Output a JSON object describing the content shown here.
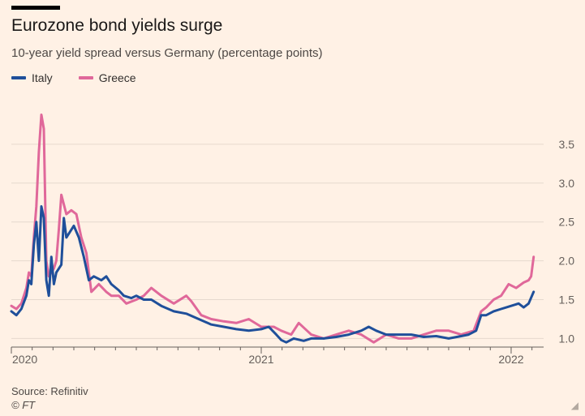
{
  "header": {
    "title": "Eurozone bond yields surge",
    "subtitle": "10-year yield spread versus Germany (percentage points)"
  },
  "footer": {
    "source": "Source: Refinitiv",
    "credit": "© FT"
  },
  "colors": {
    "background": "#fff1e5",
    "italy": "#1f4f9a",
    "greece": "#e0689a",
    "grid": "#e6d9ce",
    "axis": "#66605c"
  },
  "chart_data": {
    "type": "line",
    "title": "Eurozone bond yields surge",
    "subtitle": "10-year yield spread versus Germany (percentage points)",
    "xlabel": "",
    "ylabel": "",
    "xlim": [
      2020.0,
      2022.13
    ],
    "ylim": [
      0.9,
      4.0
    ],
    "grid": true,
    "y_axis_position": "right",
    "legend_position": "top-left",
    "x_ticks": [
      {
        "value": 2020.0,
        "label": "2020"
      },
      {
        "value": 2021.0,
        "label": "2021"
      },
      {
        "value": 2022.0,
        "label": "2022"
      }
    ],
    "y_ticks": [
      {
        "value": 1.0,
        "label": "1.0"
      },
      {
        "value": 1.5,
        "label": "1.5"
      },
      {
        "value": 2.0,
        "label": "2.0"
      },
      {
        "value": 2.5,
        "label": "2.5"
      },
      {
        "value": 3.0,
        "label": "3.0"
      },
      {
        "value": 3.5,
        "label": "3.5"
      }
    ],
    "series": [
      {
        "name": "Italy",
        "color": "#1f4f9a",
        "points": [
          [
            2020.0,
            1.35
          ],
          [
            2020.02,
            1.3
          ],
          [
            2020.04,
            1.38
          ],
          [
            2020.06,
            1.55
          ],
          [
            2020.07,
            1.75
          ],
          [
            2020.08,
            1.7
          ],
          [
            2020.09,
            2.2
          ],
          [
            2020.1,
            2.5
          ],
          [
            2020.11,
            2.0
          ],
          [
            2020.12,
            2.7
          ],
          [
            2020.13,
            2.55
          ],
          [
            2020.14,
            1.75
          ],
          [
            2020.15,
            1.55
          ],
          [
            2020.16,
            2.05
          ],
          [
            2020.17,
            1.7
          ],
          [
            2020.18,
            1.85
          ],
          [
            2020.2,
            1.95
          ],
          [
            2020.21,
            2.55
          ],
          [
            2020.22,
            2.3
          ],
          [
            2020.24,
            2.4
          ],
          [
            2020.25,
            2.45
          ],
          [
            2020.27,
            2.3
          ],
          [
            2020.29,
            2.05
          ],
          [
            2020.31,
            1.75
          ],
          [
            2020.33,
            1.8
          ],
          [
            2020.36,
            1.75
          ],
          [
            2020.38,
            1.8
          ],
          [
            2020.4,
            1.7
          ],
          [
            2020.43,
            1.62
          ],
          [
            2020.45,
            1.55
          ],
          [
            2020.48,
            1.52
          ],
          [
            2020.5,
            1.55
          ],
          [
            2020.53,
            1.5
          ],
          [
            2020.56,
            1.5
          ],
          [
            2020.6,
            1.42
          ],
          [
            2020.65,
            1.35
          ],
          [
            2020.7,
            1.32
          ],
          [
            2020.75,
            1.25
          ],
          [
            2020.8,
            1.18
          ],
          [
            2020.85,
            1.15
          ],
          [
            2020.9,
            1.12
          ],
          [
            2020.95,
            1.1
          ],
          [
            2021.0,
            1.12
          ],
          [
            2021.03,
            1.15
          ],
          [
            2021.06,
            1.05
          ],
          [
            2021.08,
            0.98
          ],
          [
            2021.1,
            0.95
          ],
          [
            2021.13,
            1.0
          ],
          [
            2021.17,
            0.97
          ],
          [
            2021.2,
            1.0
          ],
          [
            2021.25,
            1.0
          ],
          [
            2021.3,
            1.02
          ],
          [
            2021.35,
            1.05
          ],
          [
            2021.4,
            1.1
          ],
          [
            2021.43,
            1.15
          ],
          [
            2021.46,
            1.1
          ],
          [
            2021.5,
            1.05
          ],
          [
            2021.55,
            1.05
          ],
          [
            2021.6,
            1.05
          ],
          [
            2021.65,
            1.02
          ],
          [
            2021.7,
            1.03
          ],
          [
            2021.75,
            1.0
          ],
          [
            2021.8,
            1.03
          ],
          [
            2021.83,
            1.05
          ],
          [
            2021.86,
            1.1
          ],
          [
            2021.88,
            1.3
          ],
          [
            2021.9,
            1.3
          ],
          [
            2021.93,
            1.35
          ],
          [
            2021.96,
            1.38
          ],
          [
            2022.0,
            1.42
          ],
          [
            2022.03,
            1.45
          ],
          [
            2022.05,
            1.4
          ],
          [
            2022.07,
            1.45
          ],
          [
            2022.09,
            1.6
          ]
        ]
      },
      {
        "name": "Greece",
        "color": "#e0689a",
        "points": [
          [
            2020.0,
            1.42
          ],
          [
            2020.02,
            1.38
          ],
          [
            2020.04,
            1.45
          ],
          [
            2020.06,
            1.65
          ],
          [
            2020.07,
            1.85
          ],
          [
            2020.08,
            1.8
          ],
          [
            2020.09,
            2.3
          ],
          [
            2020.1,
            2.7
          ],
          [
            2020.11,
            3.4
          ],
          [
            2020.12,
            3.88
          ],
          [
            2020.13,
            3.7
          ],
          [
            2020.14,
            2.0
          ],
          [
            2020.15,
            1.8
          ],
          [
            2020.17,
            1.9
          ],
          [
            2020.18,
            2.0
          ],
          [
            2020.19,
            2.4
          ],
          [
            2020.2,
            2.85
          ],
          [
            2020.22,
            2.6
          ],
          [
            2020.24,
            2.65
          ],
          [
            2020.26,
            2.6
          ],
          [
            2020.28,
            2.3
          ],
          [
            2020.3,
            2.1
          ],
          [
            2020.32,
            1.6
          ],
          [
            2020.35,
            1.7
          ],
          [
            2020.38,
            1.6
          ],
          [
            2020.4,
            1.55
          ],
          [
            2020.43,
            1.55
          ],
          [
            2020.46,
            1.45
          ],
          [
            2020.5,
            1.5
          ],
          [
            2020.53,
            1.55
          ],
          [
            2020.56,
            1.65
          ],
          [
            2020.6,
            1.55
          ],
          [
            2020.65,
            1.45
          ],
          [
            2020.7,
            1.55
          ],
          [
            2020.72,
            1.48
          ],
          [
            2020.76,
            1.3
          ],
          [
            2020.8,
            1.25
          ],
          [
            2020.85,
            1.22
          ],
          [
            2020.9,
            1.2
          ],
          [
            2020.95,
            1.25
          ],
          [
            2021.0,
            1.15
          ],
          [
            2021.05,
            1.15
          ],
          [
            2021.08,
            1.1
          ],
          [
            2021.12,
            1.05
          ],
          [
            2021.15,
            1.2
          ],
          [
            2021.2,
            1.05
          ],
          [
            2021.25,
            1.0
          ],
          [
            2021.3,
            1.05
          ],
          [
            2021.35,
            1.1
          ],
          [
            2021.4,
            1.05
          ],
          [
            2021.45,
            0.95
          ],
          [
            2021.5,
            1.05
          ],
          [
            2021.55,
            1.0
          ],
          [
            2021.6,
            1.0
          ],
          [
            2021.65,
            1.05
          ],
          [
            2021.7,
            1.1
          ],
          [
            2021.75,
            1.1
          ],
          [
            2021.8,
            1.05
          ],
          [
            2021.85,
            1.1
          ],
          [
            2021.88,
            1.35
          ],
          [
            2021.9,
            1.4
          ],
          [
            2021.93,
            1.5
          ],
          [
            2021.96,
            1.55
          ],
          [
            2021.99,
            1.7
          ],
          [
            2022.02,
            1.65
          ],
          [
            2022.05,
            1.72
          ],
          [
            2022.07,
            1.75
          ],
          [
            2022.08,
            1.8
          ],
          [
            2022.09,
            2.05
          ]
        ]
      }
    ]
  }
}
